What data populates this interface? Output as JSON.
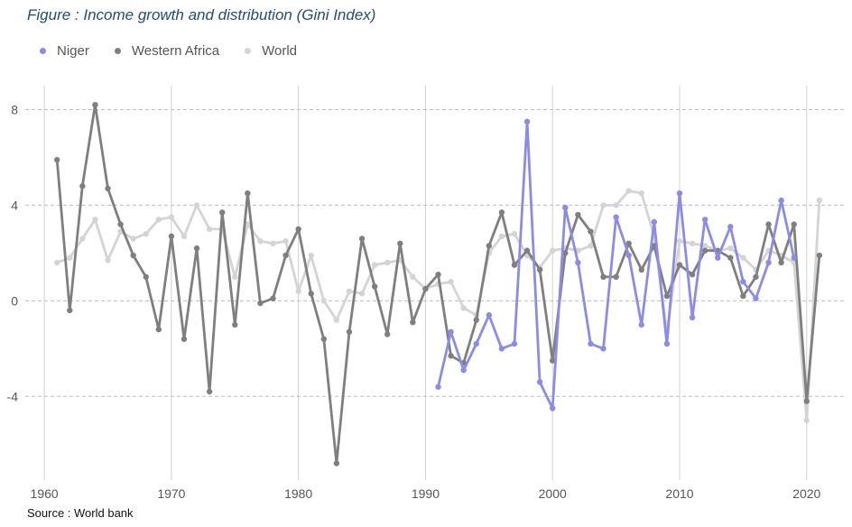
{
  "title": "Figure : Income growth and distribution (Gini Index)",
  "source": "Source : World bank",
  "colors": {
    "Niger": "#8b8bea",
    "Western Africa": "#7f7f7f",
    "World": "#d4d4d4"
  },
  "chart_data": {
    "type": "line",
    "title": "Figure : Income growth and distribution (Gini Index)",
    "xlabel": "",
    "ylabel": "",
    "xlim": [
      1958.5,
      2023
    ],
    "ylim": [
      -7.5,
      9
    ],
    "x_ticks": [
      1960,
      1970,
      1980,
      1990,
      2000,
      2010,
      2020
    ],
    "y_ticks": [
      -4,
      0,
      4,
      8
    ],
    "grid": {
      "vertical": true,
      "horizontal": "dashed"
    },
    "legend": "top-left",
    "series": [
      {
        "name": "Niger",
        "x": [
          1991,
          1992,
          1993,
          1994,
          1995,
          1996,
          1997,
          1998,
          1999,
          2000,
          2001,
          2002,
          2003,
          2004,
          2005,
          2006,
          2007,
          2008,
          2009,
          2010,
          2011,
          2012,
          2013,
          2014,
          2015,
          2016,
          2017,
          2018,
          2019
        ],
        "values": [
          -3.6,
          -1.3,
          -2.9,
          -1.8,
          -0.6,
          -2.0,
          -1.8,
          7.5,
          -3.4,
          -4.5,
          3.9,
          1.6,
          -1.8,
          -2.0,
          3.5,
          1.9,
          -1.0,
          3.3,
          -1.8,
          4.5,
          -0.7,
          3.4,
          1.8,
          3.1,
          0.8,
          0.1,
          1.6,
          4.2,
          1.8
        ]
      },
      {
        "name": "Western Africa",
        "x": [
          1961,
          1962,
          1963,
          1964,
          1965,
          1966,
          1967,
          1968,
          1969,
          1970,
          1971,
          1972,
          1973,
          1974,
          1975,
          1976,
          1977,
          1978,
          1979,
          1980,
          1981,
          1982,
          1983,
          1984,
          1985,
          1986,
          1987,
          1988,
          1989,
          1990,
          1991,
          1992,
          1993,
          1994,
          1995,
          1996,
          1997,
          1998,
          1999,
          2000,
          2001,
          2002,
          2003,
          2004,
          2005,
          2006,
          2007,
          2008,
          2009,
          2010,
          2011,
          2012,
          2013,
          2014,
          2015,
          2016,
          2017,
          2018,
          2019,
          2020,
          2021
        ],
        "values": [
          5.9,
          -0.4,
          4.8,
          8.2,
          4.7,
          3.2,
          1.9,
          1.0,
          -1.2,
          2.7,
          -1.6,
          2.2,
          -3.8,
          3.7,
          -1.0,
          4.5,
          -0.1,
          0.1,
          1.9,
          3.0,
          0.3,
          -1.6,
          -6.8,
          -1.3,
          2.6,
          0.6,
          -1.4,
          2.4,
          -0.9,
          0.5,
          1.1,
          -2.3,
          -2.6,
          -0.8,
          2.3,
          3.7,
          1.5,
          2.1,
          1.3,
          -2.5,
          2.0,
          3.6,
          2.9,
          1.0,
          1.0,
          2.4,
          1.3,
          2.3,
          0.2,
          1.5,
          1.1,
          2.1,
          2.1,
          1.8,
          0.2,
          1.0,
          3.2,
          1.6,
          3.2,
          -4.2,
          1.9
        ]
      },
      {
        "name": "World",
        "x": [
          1961,
          1962,
          1963,
          1964,
          1965,
          1966,
          1967,
          1968,
          1969,
          1970,
          1971,
          1972,
          1973,
          1974,
          1975,
          1976,
          1977,
          1978,
          1979,
          1980,
          1981,
          1982,
          1983,
          1984,
          1985,
          1986,
          1987,
          1988,
          1989,
          1990,
          1991,
          1992,
          1993,
          1994,
          1995,
          1996,
          1997,
          1998,
          1999,
          2000,
          2001,
          2002,
          2003,
          2004,
          2005,
          2006,
          2007,
          2008,
          2009,
          2010,
          2011,
          2012,
          2013,
          2014,
          2015,
          2016,
          2017,
          2018,
          2019,
          2020,
          2021
        ],
        "values": [
          1.6,
          1.8,
          2.6,
          3.4,
          1.7,
          2.9,
          2.6,
          2.8,
          3.4,
          3.5,
          2.7,
          4.0,
          3.0,
          3.0,
          1.0,
          3.2,
          2.5,
          2.4,
          2.5,
          0.4,
          1.9,
          0.0,
          -0.8,
          0.4,
          0.3,
          1.5,
          1.6,
          1.7,
          1.0,
          0.5,
          0.7,
          0.8,
          -0.3,
          -0.6,
          2.0,
          2.7,
          2.8,
          1.9,
          1.4,
          2.1,
          2.2,
          2.1,
          2.3,
          4.0,
          4.0,
          4.6,
          4.5,
          2.7,
          -1.3,
          2.5,
          2.4,
          2.3,
          2.1,
          2.2,
          1.8,
          1.3,
          2.1,
          1.9,
          1.6,
          -5.0,
          4.2
        ]
      }
    ]
  }
}
